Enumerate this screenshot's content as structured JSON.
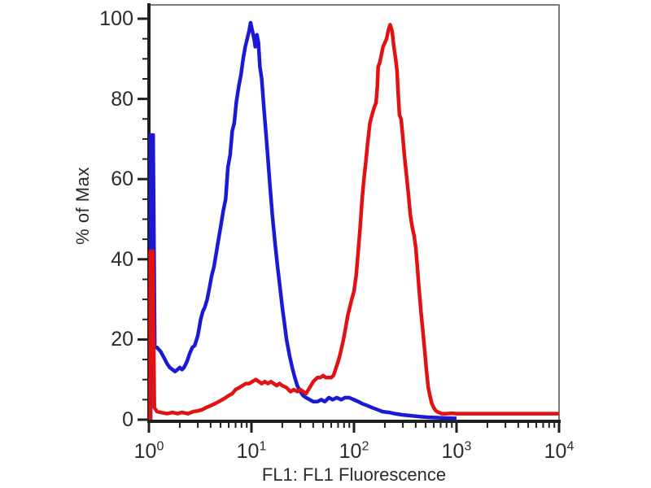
{
  "chart_data": {
    "type": "line",
    "variant": "flow-cytometry-histogram-overlay",
    "title": "",
    "xlabel": "FL1: FL1 Fluorescence",
    "ylabel": "% of Max",
    "x_scale": "log10",
    "x_range": [
      1,
      10000
    ],
    "y_range": [
      0,
      100
    ],
    "x_tick_base": "10",
    "x_tick_exponents": [
      0,
      1,
      2,
      3,
      4
    ],
    "y_ticks": [
      0,
      20,
      40,
      60,
      80,
      100
    ],
    "y_minor_tick_step": 5,
    "grid": false,
    "legend_position": "none",
    "frame": "box",
    "colors": {
      "blue_series": "#1a1ad6",
      "red_series": "#e01212",
      "axis": "#1f1f1f",
      "frame": "#7d7d7d",
      "text": "#2b2b2b",
      "background": "#ffffff"
    },
    "series": [
      {
        "name": "blue",
        "color_key": "blue_series",
        "points": [
          [
            1.04,
            0
          ],
          [
            1.04,
            71
          ],
          [
            1.1,
            71
          ],
          [
            1.14,
            18
          ],
          [
            1.2,
            18
          ],
          [
            1.3,
            17
          ],
          [
            1.4,
            15.5
          ],
          [
            1.5,
            14
          ],
          [
            1.6,
            13
          ],
          [
            1.7,
            12.5
          ],
          [
            1.8,
            12
          ],
          [
            1.9,
            12.5
          ],
          [
            2.0,
            13
          ],
          [
            2.1,
            12.5
          ],
          [
            2.2,
            13
          ],
          [
            2.35,
            14.5
          ],
          [
            2.5,
            16.5
          ],
          [
            2.65,
            18
          ],
          [
            2.8,
            18.5
          ],
          [
            3.0,
            21
          ],
          [
            3.1,
            23
          ],
          [
            3.2,
            25
          ],
          [
            3.35,
            27
          ],
          [
            3.5,
            28
          ],
          [
            3.7,
            30
          ],
          [
            3.9,
            33
          ],
          [
            4.1,
            36
          ],
          [
            4.3,
            38
          ],
          [
            4.5,
            41
          ],
          [
            4.7,
            44
          ],
          [
            5.0,
            48
          ],
          [
            5.3,
            52
          ],
          [
            5.6,
            55
          ],
          [
            5.9,
            63
          ],
          [
            6.2,
            66
          ],
          [
            6.5,
            72
          ],
          [
            6.8,
            74
          ],
          [
            7.1,
            79
          ],
          [
            7.5,
            83
          ],
          [
            7.9,
            86
          ],
          [
            8.3,
            90
          ],
          [
            8.7,
            93
          ],
          [
            9.1,
            95
          ],
          [
            9.5,
            97
          ],
          [
            9.8,
            99
          ],
          [
            10.2,
            97
          ],
          [
            10.6,
            95
          ],
          [
            10.9,
            93
          ],
          [
            11.3,
            96
          ],
          [
            11.7,
            94
          ],
          [
            12.1,
            88
          ],
          [
            12.6,
            85
          ],
          [
            13.2,
            78
          ],
          [
            13.8,
            72
          ],
          [
            14.5,
            65
          ],
          [
            15.2,
            58
          ],
          [
            16,
            51
          ],
          [
            17,
            44
          ],
          [
            18,
            38
          ],
          [
            19,
            33
          ],
          [
            20,
            28
          ],
          [
            21,
            24
          ],
          [
            22,
            20
          ],
          [
            23.5,
            16
          ],
          [
            25,
            13
          ],
          [
            26.5,
            10.5
          ],
          [
            28,
            8.5
          ],
          [
            30,
            7
          ],
          [
            32,
            6
          ],
          [
            34,
            5.5
          ],
          [
            37,
            5
          ],
          [
            40,
            4.5
          ],
          [
            44,
            4.5
          ],
          [
            48,
            5
          ],
          [
            52,
            4.5
          ],
          [
            57,
            5.5
          ],
          [
            62,
            5
          ],
          [
            68,
            5.5
          ],
          [
            75,
            5
          ],
          [
            82,
            5.5
          ],
          [
            90,
            5.5
          ],
          [
            100,
            5
          ],
          [
            110,
            4.5
          ],
          [
            120,
            4
          ],
          [
            135,
            3.5
          ],
          [
            150,
            3
          ],
          [
            170,
            2.5
          ],
          [
            190,
            2
          ],
          [
            220,
            1.8
          ],
          [
            250,
            1.5
          ],
          [
            300,
            1.2
          ],
          [
            360,
            1
          ],
          [
            430,
            0.8
          ],
          [
            520,
            0.6
          ],
          [
            650,
            0.5
          ],
          [
            800,
            0.4
          ],
          [
            1000,
            0.3
          ]
        ]
      },
      {
        "name": "red",
        "color_key": "red_series",
        "points": [
          [
            1.03,
            0
          ],
          [
            1.03,
            42
          ],
          [
            1.09,
            42
          ],
          [
            1.13,
            3
          ],
          [
            1.2,
            2
          ],
          [
            1.3,
            1.8
          ],
          [
            1.5,
            1.5
          ],
          [
            1.7,
            1.8
          ],
          [
            1.9,
            1.5
          ],
          [
            2.1,
            1.8
          ],
          [
            2.4,
            1.5
          ],
          [
            2.7,
            2
          ],
          [
            3.0,
            2.2
          ],
          [
            3.3,
            2.5
          ],
          [
            3.6,
            3
          ],
          [
            4.0,
            3.5
          ],
          [
            4.4,
            4
          ],
          [
            4.8,
            4.5
          ],
          [
            5.2,
            5
          ],
          [
            5.6,
            5.5
          ],
          [
            6.0,
            6
          ],
          [
            6.5,
            6.5
          ],
          [
            7.0,
            7.5
          ],
          [
            7.6,
            8
          ],
          [
            8.2,
            8.5
          ],
          [
            8.8,
            9
          ],
          [
            9.5,
            9
          ],
          [
            10.2,
            9.5
          ],
          [
            11,
            10
          ],
          [
            11.8,
            9.5
          ],
          [
            12.6,
            9
          ],
          [
            13.5,
            9.5
          ],
          [
            14.5,
            9
          ],
          [
            15.5,
            9.5
          ],
          [
            16.5,
            9
          ],
          [
            17.6,
            8.5
          ],
          [
            18.8,
            9
          ],
          [
            20,
            8.5
          ],
          [
            22,
            8
          ],
          [
            24,
            7
          ],
          [
            26,
            7.5
          ],
          [
            28,
            7
          ],
          [
            30,
            7.5
          ],
          [
            32,
            7
          ],
          [
            34,
            6.5
          ],
          [
            36,
            7.5
          ],
          [
            38,
            8.5
          ],
          [
            40,
            9.5
          ],
          [
            42,
            10
          ],
          [
            44,
            10.5
          ],
          [
            47,
            10.5
          ],
          [
            50,
            11
          ],
          [
            53,
            10.5
          ],
          [
            56,
            10.5
          ],
          [
            60,
            10.5
          ],
          [
            63,
            11
          ],
          [
            66,
            12.5
          ],
          [
            69,
            14
          ],
          [
            72,
            15.5
          ],
          [
            75,
            17.5
          ],
          [
            79,
            20
          ],
          [
            83,
            23
          ],
          [
            87,
            26
          ],
          [
            91,
            28
          ],
          [
            95,
            30
          ],
          [
            100,
            32
          ],
          [
            105,
            36
          ],
          [
            110,
            42
          ],
          [
            115,
            48
          ],
          [
            120,
            55
          ],
          [
            125,
            60
          ],
          [
            130,
            64
          ],
          [
            136,
            69
          ],
          [
            143,
            74
          ],
          [
            150,
            76
          ],
          [
            158,
            78
          ],
          [
            164,
            79
          ],
          [
            169,
            83
          ],
          [
            172,
            88
          ],
          [
            178,
            89
          ],
          [
            185,
            91
          ],
          [
            192,
            93
          ],
          [
            200,
            94
          ],
          [
            208,
            95
          ],
          [
            216,
            97
          ],
          [
            225,
            98.5
          ],
          [
            235,
            97
          ],
          [
            245,
            93
          ],
          [
            255,
            90
          ],
          [
            263,
            87
          ],
          [
            270,
            81
          ],
          [
            278,
            76
          ],
          [
            288,
            75
          ],
          [
            298,
            71
          ],
          [
            310,
            66
          ],
          [
            325,
            61
          ],
          [
            340,
            56
          ],
          [
            355,
            51
          ],
          [
            370,
            48
          ],
          [
            385,
            46
          ],
          [
            400,
            43
          ],
          [
            415,
            38
          ],
          [
            430,
            33
          ],
          [
            450,
            27
          ],
          [
            470,
            22
          ],
          [
            490,
            17
          ],
          [
            510,
            12
          ],
          [
            530,
            8
          ],
          [
            550,
            6
          ],
          [
            575,
            4
          ],
          [
            600,
            3
          ],
          [
            630,
            2.2
          ],
          [
            670,
            1.8
          ],
          [
            720,
            1.5
          ],
          [
            800,
            1.5
          ],
          [
            900,
            1.6
          ],
          [
            1000,
            1.5
          ],
          [
            1300,
            1.5
          ],
          [
            1700,
            1.5
          ],
          [
            2200,
            1.5
          ],
          [
            3000,
            1.5
          ],
          [
            4000,
            1.5
          ],
          [
            5500,
            1.5
          ],
          [
            7500,
            1.5
          ],
          [
            10000,
            1.5
          ]
        ]
      }
    ]
  }
}
